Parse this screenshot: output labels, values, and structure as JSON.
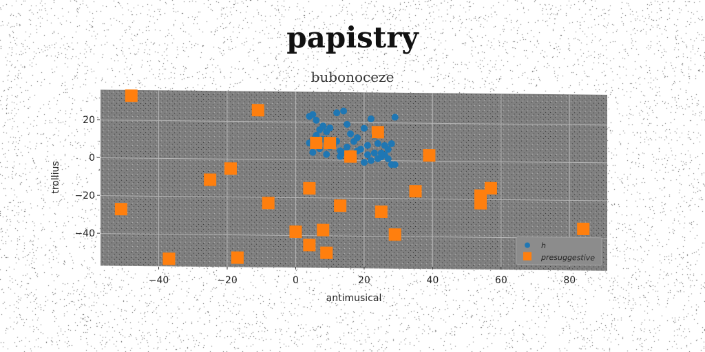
{
  "chart_data": {
    "type": "scatter",
    "title": "papistry",
    "subtitle": "bubonoceze",
    "xlabel": "antimusical",
    "ylabel": "trollius",
    "xlim": [
      -57,
      91
    ],
    "ylim": [
      -57,
      36
    ],
    "xticks": [
      -40,
      -20,
      0,
      20,
      40,
      60,
      80
    ],
    "yticks": [
      -40,
      -20,
      0,
      20
    ],
    "grid": true,
    "legend_position": "lower-right",
    "background_color": "#808080",
    "series": [
      {
        "name": "h",
        "marker": "circle",
        "color": "#1f77b4",
        "x": [
          4,
          5,
          6,
          7,
          8,
          10,
          12,
          14,
          15,
          16,
          18,
          20,
          22,
          24,
          26,
          28,
          29,
          5,
          7,
          9,
          11,
          13,
          17,
          19,
          21,
          23,
          25,
          27,
          6,
          8,
          10,
          12,
          14,
          16,
          20,
          22,
          24,
          26,
          28,
          4,
          6,
          9,
          13,
          15,
          18,
          21,
          23,
          25,
          27,
          29
        ],
        "y": [
          23,
          24,
          21,
          16,
          18,
          17,
          25,
          26,
          19,
          14,
          12,
          17,
          22,
          9,
          8,
          9,
          23,
          4,
          6,
          3,
          8,
          5,
          10,
          6,
          3,
          4,
          2,
          1,
          13,
          11,
          7,
          10,
          4,
          2,
          -1,
          0,
          1,
          3,
          -2,
          9,
          12,
          15,
          2,
          7,
          5,
          8,
          13,
          4,
          6,
          -2
        ]
      },
      {
        "name": "presuggestive",
        "marker": "square",
        "color": "#ff7f0e",
        "x": [
          -48,
          -11,
          6,
          10,
          16,
          24,
          39,
          -19,
          -25,
          -51,
          4,
          -8,
          13,
          25,
          35,
          54,
          57,
          54,
          0,
          4,
          8,
          29,
          84,
          -37,
          -17,
          9
        ],
        "y": [
          33,
          26,
          9,
          9,
          2,
          15,
          3,
          -5,
          -11,
          -27,
          -15,
          -23,
          -24,
          -27,
          -16,
          -18,
          -14,
          -22,
          -38,
          -45,
          -37,
          -39,
          -35,
          -53,
          -52,
          -49
        ]
      }
    ]
  }
}
